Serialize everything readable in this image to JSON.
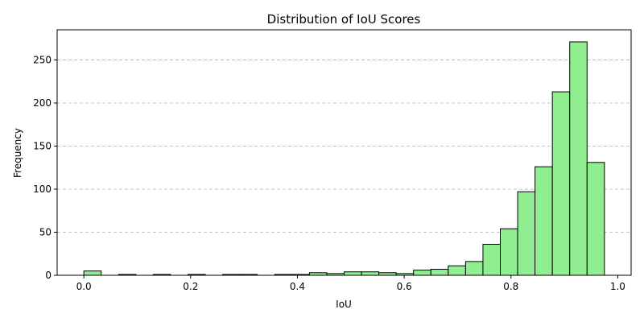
{
  "chart_data": {
    "type": "bar",
    "subtype": "histogram",
    "title": "Distribution of IoU Scores",
    "xlabel": "IoU",
    "ylabel": "Frequency",
    "xlim": [
      -0.05,
      1.025
    ],
    "ylim": [
      0,
      285
    ],
    "xticks": [
      0.0,
      0.2,
      0.4,
      0.6,
      0.8,
      1.0
    ],
    "xtick_labels": [
      "0.0",
      "0.2",
      "0.4",
      "0.6",
      "0.8",
      "1.0"
    ],
    "yticks": [
      0,
      50,
      100,
      150,
      200,
      250
    ],
    "ytick_labels": [
      "0",
      "50",
      "100",
      "150",
      "200",
      "250"
    ],
    "grid": "y-dashed",
    "bar_color": "#90ee90",
    "edge_color": "#000000",
    "bins": [
      {
        "x0": 0.0,
        "x1": 0.0325,
        "count": 5
      },
      {
        "x0": 0.0325,
        "x1": 0.065,
        "count": 0
      },
      {
        "x0": 0.065,
        "x1": 0.0975,
        "count": 1
      },
      {
        "x0": 0.0975,
        "x1": 0.13,
        "count": 0
      },
      {
        "x0": 0.13,
        "x1": 0.1625,
        "count": 1
      },
      {
        "x0": 0.1625,
        "x1": 0.195,
        "count": 0
      },
      {
        "x0": 0.195,
        "x1": 0.2275,
        "count": 1
      },
      {
        "x0": 0.2275,
        "x1": 0.26,
        "count": 0
      },
      {
        "x0": 0.26,
        "x1": 0.2925,
        "count": 1
      },
      {
        "x0": 0.2925,
        "x1": 0.325,
        "count": 1
      },
      {
        "x0": 0.325,
        "x1": 0.3575,
        "count": 0
      },
      {
        "x0": 0.3575,
        "x1": 0.39,
        "count": 1
      },
      {
        "x0": 0.39,
        "x1": 0.4225,
        "count": 1
      },
      {
        "x0": 0.4225,
        "x1": 0.455,
        "count": 3
      },
      {
        "x0": 0.455,
        "x1": 0.4875,
        "count": 2
      },
      {
        "x0": 0.4875,
        "x1": 0.52,
        "count": 4
      },
      {
        "x0": 0.52,
        "x1": 0.5525,
        "count": 4
      },
      {
        "x0": 0.5525,
        "x1": 0.585,
        "count": 3
      },
      {
        "x0": 0.585,
        "x1": 0.6175,
        "count": 2
      },
      {
        "x0": 0.6175,
        "x1": 0.65,
        "count": 6
      },
      {
        "x0": 0.65,
        "x1": 0.6825,
        "count": 7
      },
      {
        "x0": 0.6825,
        "x1": 0.715,
        "count": 11
      },
      {
        "x0": 0.715,
        "x1": 0.7475,
        "count": 16
      },
      {
        "x0": 0.7475,
        "x1": 0.78,
        "count": 36
      },
      {
        "x0": 0.78,
        "x1": 0.8125,
        "count": 54
      },
      {
        "x0": 0.8125,
        "x1": 0.845,
        "count": 97
      },
      {
        "x0": 0.845,
        "x1": 0.8775,
        "count": 126
      },
      {
        "x0": 0.8775,
        "x1": 0.91,
        "count": 213
      },
      {
        "x0": 0.91,
        "x1": 0.9425,
        "count": 271
      },
      {
        "x0": 0.9425,
        "x1": 0.975,
        "count": 131
      }
    ]
  }
}
